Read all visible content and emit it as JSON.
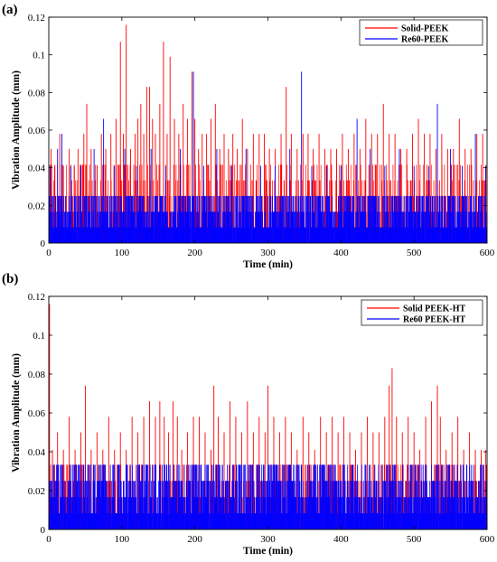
{
  "chart_data": [
    {
      "type": "bar",
      "panel_label": "(a)",
      "xlabel": "Time (min)",
      "ylabel": "Vibration Amplitude (mm)",
      "xlim": [
        0,
        600
      ],
      "ylim": [
        0,
        0.12
      ],
      "xticks": [
        "0",
        "100",
        "200",
        "300",
        "400",
        "500",
        "600"
      ],
      "yticks": [
        "0",
        "0.02",
        "0.04",
        "0.06",
        "0.08",
        "0.1",
        "0.12"
      ],
      "legend_position": "top-right",
      "grid": false,
      "series": [
        {
          "name": "Solid-PEEK",
          "color": "#ff0000",
          "levels": [
            0.0083,
            0.0166,
            0.025,
            0.0333,
            0.0416
          ],
          "x": [
            3,
            8,
            15,
            20,
            28,
            35,
            40,
            48,
            52,
            58,
            66,
            72,
            78,
            85,
            92,
            98,
            102,
            106,
            112,
            118,
            122,
            126,
            130,
            134,
            138,
            142,
            146,
            152,
            157,
            162,
            166,
            172,
            178,
            184,
            190,
            196,
            200,
            205,
            210,
            216,
            222,
            228,
            234,
            240,
            246,
            252,
            258,
            265,
            272,
            280,
            288,
            295,
            302,
            310,
            318,
            325,
            332,
            340,
            348,
            355,
            362,
            370,
            378,
            386,
            394,
            402,
            410,
            418,
            426,
            434,
            442,
            450,
            458,
            466,
            474,
            482,
            490,
            498,
            506,
            514,
            522,
            530,
            538,
            546,
            554,
            562,
            570,
            578,
            586,
            594
          ],
          "values": [
            0.05,
            0.041,
            0.058,
            0.041,
            0.05,
            0.041,
            0.05,
            0.058,
            0.074,
            0.05,
            0.041,
            0.058,
            0.05,
            0.058,
            0.066,
            0.107,
            0.058,
            0.116,
            0.05,
            0.058,
            0.066,
            0.074,
            0.058,
            0.083,
            0.083,
            0.066,
            0.058,
            0.074,
            0.107,
            0.058,
            0.099,
            0.066,
            0.058,
            0.074,
            0.066,
            0.091,
            0.066,
            0.05,
            0.058,
            0.058,
            0.066,
            0.074,
            0.05,
            0.058,
            0.05,
            0.058,
            0.05,
            0.066,
            0.05,
            0.058,
            0.058,
            0.058,
            0.05,
            0.05,
            0.058,
            0.083,
            0.058,
            0.05,
            0.058,
            0.058,
            0.05,
            0.058,
            0.05,
            0.05,
            0.05,
            0.058,
            0.05,
            0.058,
            0.05,
            0.066,
            0.058,
            0.058,
            0.074,
            0.058,
            0.058,
            0.05,
            0.05,
            0.058,
            0.066,
            0.058,
            0.058,
            0.05,
            0.058,
            0.05,
            0.05,
            0.066,
            0.05,
            0.05,
            0.058,
            0.058
          ]
        },
        {
          "name": "Re60-PEEK",
          "color": "#0000ff",
          "levels": [
            0.0083,
            0.0166,
            0.025
          ],
          "x": [
            2,
            12,
            18,
            30,
            44,
            62,
            75,
            90,
            104,
            120,
            140,
            160,
            180,
            198,
            212,
            230,
            250,
            270,
            290,
            310,
            330,
            346,
            360,
            380,
            400,
            422,
            440,
            460,
            480,
            500,
            520,
            532,
            550,
            566,
            584,
            598
          ],
          "values": [
            0.041,
            0.05,
            0.058,
            0.041,
            0.041,
            0.05,
            0.066,
            0.041,
            0.05,
            0.041,
            0.05,
            0.041,
            0.05,
            0.091,
            0.041,
            0.05,
            0.041,
            0.05,
            0.041,
            0.041,
            0.05,
            0.091,
            0.041,
            0.041,
            0.041,
            0.066,
            0.05,
            0.041,
            0.05,
            0.041,
            0.041,
            0.074,
            0.05,
            0.041,
            0.058,
            0.041
          ]
        }
      ]
    },
    {
      "type": "bar",
      "panel_label": "(b)",
      "xlabel": "Time (min)",
      "ylabel": "Vibration Amplitude (mm)",
      "xlim": [
        0,
        600
      ],
      "ylim": [
        0,
        0.12
      ],
      "xticks": [
        "0",
        "100",
        "200",
        "300",
        "400",
        "500",
        "600"
      ],
      "yticks": [
        "0",
        "0.02",
        "0.04",
        "0.06",
        "0.08",
        "0.1",
        "0.12"
      ],
      "legend_position": "top-right",
      "grid": false,
      "series": [
        {
          "name": "Solid PEEK-HT",
          "color": "#ff0000",
          "levels": [
            0.0083,
            0.0166,
            0.025,
            0.0333
          ],
          "x": [
            1,
            5,
            12,
            20,
            28,
            36,
            44,
            50,
            58,
            66,
            74,
            82,
            90,
            98,
            106,
            114,
            122,
            130,
            138,
            146,
            152,
            158,
            164,
            170,
            176,
            182,
            190,
            198,
            206,
            214,
            222,
            226,
            232,
            240,
            248,
            256,
            264,
            272,
            280,
            288,
            296,
            300,
            308,
            316,
            324,
            332,
            340,
            348,
            356,
            364,
            372,
            380,
            388,
            396,
            404,
            412,
            420,
            428,
            436,
            444,
            452,
            460,
            466,
            470,
            476,
            484,
            492,
            500,
            508,
            516,
            524,
            532,
            536,
            544,
            552,
            560,
            568,
            576,
            584,
            592,
            598
          ],
          "values": [
            0.116,
            0.041,
            0.05,
            0.041,
            0.058,
            0.041,
            0.05,
            0.074,
            0.041,
            0.05,
            0.041,
            0.058,
            0.041,
            0.05,
            0.041,
            0.058,
            0.05,
            0.058,
            0.066,
            0.058,
            0.066,
            0.058,
            0.05,
            0.066,
            0.058,
            0.041,
            0.05,
            0.058,
            0.058,
            0.05,
            0.041,
            0.074,
            0.058,
            0.05,
            0.066,
            0.058,
            0.05,
            0.066,
            0.05,
            0.058,
            0.05,
            0.074,
            0.058,
            0.05,
            0.058,
            0.05,
            0.041,
            0.058,
            0.05,
            0.041,
            0.058,
            0.05,
            0.058,
            0.05,
            0.058,
            0.05,
            0.041,
            0.05,
            0.058,
            0.05,
            0.05,
            0.058,
            0.074,
            0.083,
            0.058,
            0.05,
            0.058,
            0.05,
            0.041,
            0.058,
            0.066,
            0.074,
            0.058,
            0.041,
            0.05,
            0.058,
            0.041,
            0.05,
            0.041,
            0.041,
            0.041
          ]
        },
        {
          "name": "Re60 PEEK-HT",
          "color": "#0000ff",
          "levels": [
            0.0083,
            0.0166,
            0.025,
            0.0333
          ],
          "x": [],
          "values": []
        }
      ]
    }
  ]
}
